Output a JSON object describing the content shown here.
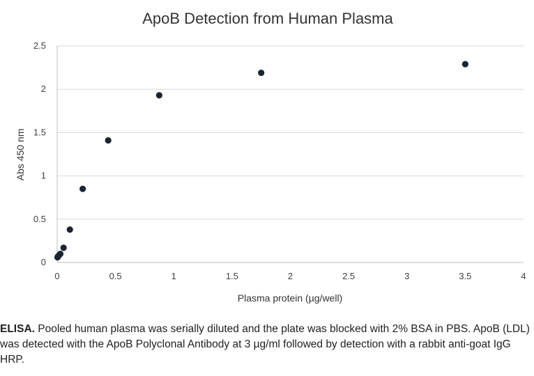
{
  "chart_data": {
    "type": "scatter",
    "title": "ApoB Detection from Human Plasma",
    "xlabel": "Plasma protein (µg/well)",
    "ylabel": "Abs 450 nm",
    "xlim": [
      0,
      4
    ],
    "ylim": [
      0,
      2.5
    ],
    "x_ticks": [
      "0",
      "0.5",
      "1",
      "1.5",
      "2",
      "2.5",
      "3",
      "3.5",
      "4"
    ],
    "y_ticks": [
      "0",
      "0.5",
      "1",
      "1.5",
      "2",
      "2.5"
    ],
    "grid": "horizontal",
    "marker_color": "#1b2433",
    "points": [
      {
        "x": 3.5,
        "y": 2.29
      },
      {
        "x": 1.75,
        "y": 2.19
      },
      {
        "x": 0.875,
        "y": 1.93
      },
      {
        "x": 0.4375,
        "y": 1.41
      },
      {
        "x": 0.219,
        "y": 0.85
      },
      {
        "x": 0.109,
        "y": 0.38
      },
      {
        "x": 0.055,
        "y": 0.17
      },
      {
        "x": 0.027,
        "y": 0.1
      },
      {
        "x": 0.014,
        "y": 0.08
      },
      {
        "x": 0.007,
        "y": 0.07
      },
      {
        "x": 0.003,
        "y": 0.06
      }
    ]
  },
  "caption": {
    "bold": "ELISA.",
    "text": " Pooled human plasma was serially diluted and the plate was blocked with 2% BSA in PBS. ApoB (LDL) was detected with the ApoB Polyclonal Antibody at 3 µg/ml followed by detection with a rabbit anti-goat IgG HRP."
  }
}
